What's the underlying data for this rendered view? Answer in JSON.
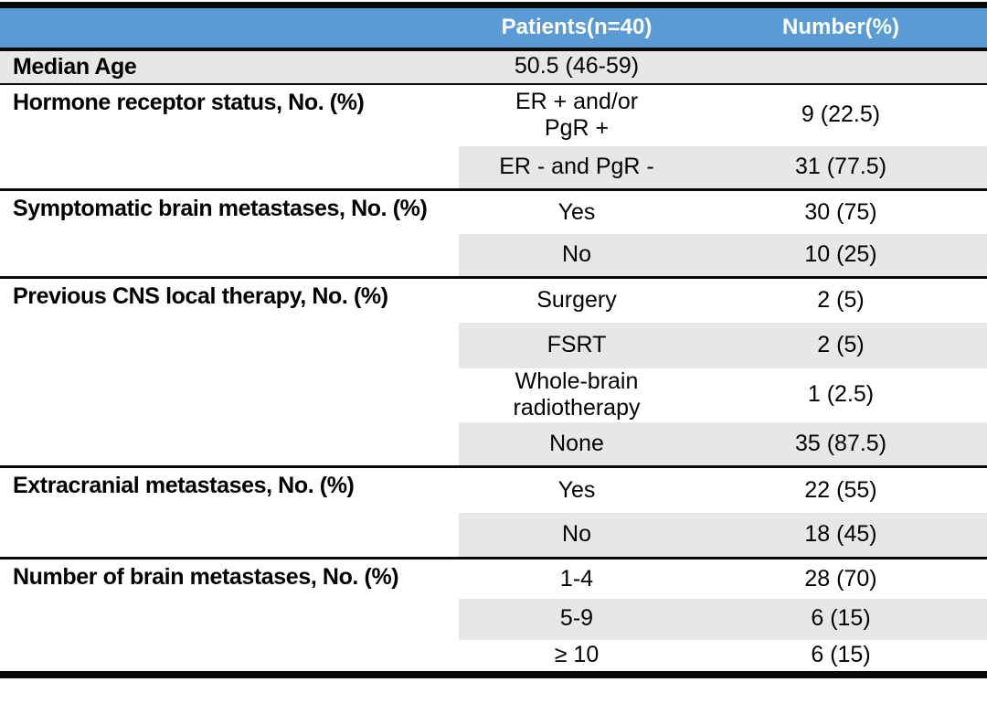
{
  "table": {
    "title_semantic": "Patient characteristics table",
    "colors": {
      "header_bg": "#5B9BD5",
      "header_text": "#FFFFFF",
      "band_bg": "#E8E7E7",
      "rule": "#0A0A0A",
      "body_text": "#000000"
    },
    "header": {
      "col1": "",
      "col2": "Patients(n=40)",
      "col3": "Number(%)"
    },
    "sections": [
      {
        "label": "Median Age",
        "rows": [
          {
            "value": "50.5 (46-59)",
            "number": ""
          }
        ]
      },
      {
        "label": "Hormone receptor status, No. (%)",
        "rows": [
          {
            "value": "ER + and/or\nPgR +",
            "number": "9 (22.5)"
          },
          {
            "value": "ER - and PgR -",
            "number": "31 (77.5)"
          }
        ]
      },
      {
        "label": "Symptomatic brain metastases, No. (%)",
        "rows": [
          {
            "value": "Yes",
            "number": "30 (75)"
          },
          {
            "value": "No",
            "number": "10 (25)"
          }
        ]
      },
      {
        "label": "Previous CNS local therapy, No. (%)",
        "rows": [
          {
            "value": "Surgery",
            "number": "2 (5)"
          },
          {
            "value": "FSRT",
            "number": "2 (5)"
          },
          {
            "value": "Whole-brain\nradiotherapy",
            "number": "1 (2.5)"
          },
          {
            "value": "None",
            "number": "35 (87.5)"
          }
        ]
      },
      {
        "label": "Extracranial metastases, No. (%)",
        "rows": [
          {
            "value": "Yes",
            "number": "22 (55)"
          },
          {
            "value": "No",
            "number": "18 (45)"
          }
        ]
      },
      {
        "label": "Number of brain metastases, No. (%)",
        "rows": [
          {
            "value": "1-4",
            "number": "28 (70)"
          },
          {
            "value": "5-9",
            "number": "6 (15)"
          },
          {
            "value": "≥ 10",
            "number": "6 (15)"
          }
        ]
      }
    ]
  }
}
